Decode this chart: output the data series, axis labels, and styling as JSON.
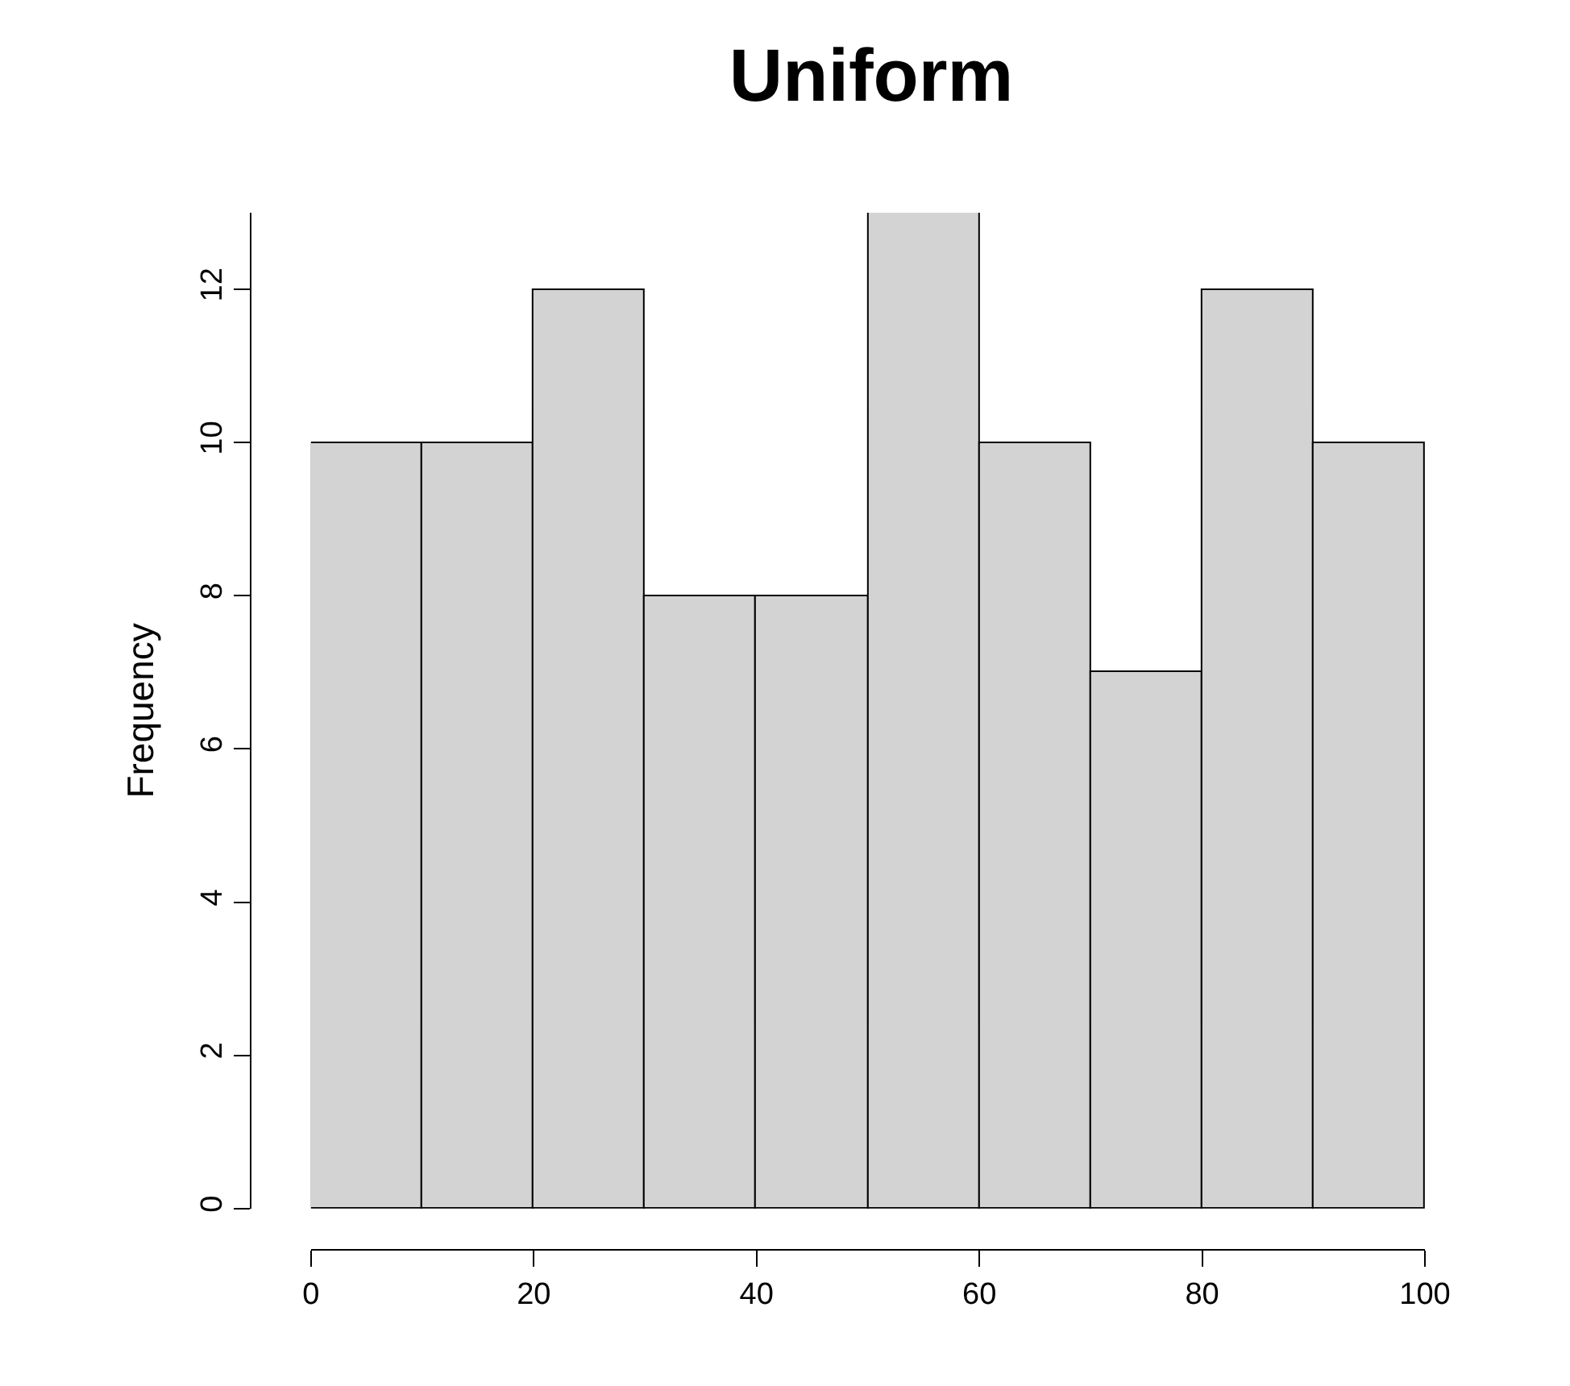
{
  "chart_data": {
    "type": "histogram",
    "title": "Uniform",
    "ylabel": "Frequency",
    "bins": [
      0,
      10,
      20,
      30,
      40,
      50,
      60,
      70,
      80,
      90,
      100
    ],
    "values": [
      10,
      10,
      12,
      8,
      8,
      13,
      10,
      7,
      12,
      10
    ],
    "color": "#d3d3d3",
    "xlim": [
      0,
      100
    ],
    "xticks": [
      0,
      20,
      40,
      60,
      80,
      100
    ],
    "ylim": [
      0,
      13
    ],
    "yticks": [
      0,
      2,
      4,
      6,
      8,
      10,
      12
    ]
  }
}
